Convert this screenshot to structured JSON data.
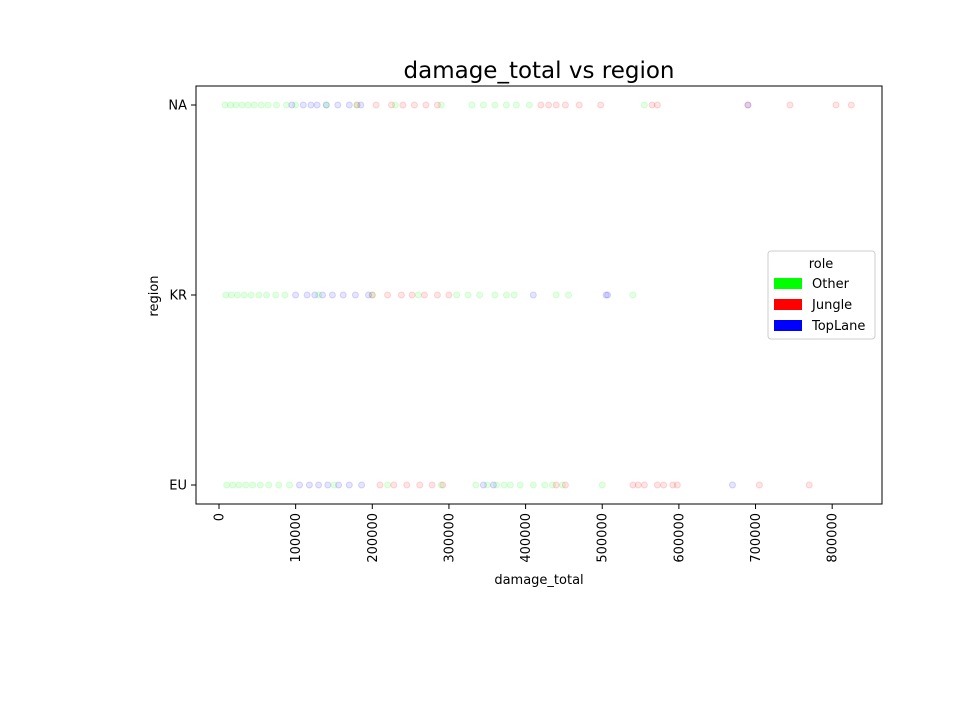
{
  "chart_data": {
    "type": "scatter",
    "title": "damage_total vs region",
    "xlabel": "damage_total",
    "ylabel": "region",
    "xlim": [
      -30000,
      865000
    ],
    "categories": [
      "EU",
      "KR",
      "NA"
    ],
    "xticks": [
      0,
      100000,
      200000,
      300000,
      400000,
      500000,
      600000,
      700000,
      800000
    ],
    "legend": {
      "title": "role",
      "placement": "center-right",
      "entries": [
        {
          "name": "Other",
          "color": "#00ff00"
        },
        {
          "name": "Jungle",
          "color": "#ff0000"
        },
        {
          "name": "TopLane",
          "color": "#0000ff"
        }
      ]
    },
    "grid": false,
    "marker_alpha": 0.1,
    "series": [
      {
        "name": "Other",
        "color": "#00ff00",
        "points": [
          {
            "region": "NA",
            "x": 8000
          },
          {
            "region": "NA",
            "x": 15000
          },
          {
            "region": "NA",
            "x": 22000
          },
          {
            "region": "NA",
            "x": 30000
          },
          {
            "region": "NA",
            "x": 38000
          },
          {
            "region": "NA",
            "x": 46000
          },
          {
            "region": "NA",
            "x": 55000
          },
          {
            "region": "NA",
            "x": 64000
          },
          {
            "region": "NA",
            "x": 75000
          },
          {
            "region": "NA",
            "x": 88000
          },
          {
            "region": "NA",
            "x": 100000
          },
          {
            "region": "NA",
            "x": 140000
          },
          {
            "region": "NA",
            "x": 180000
          },
          {
            "region": "NA",
            "x": 230000
          },
          {
            "region": "NA",
            "x": 290000
          },
          {
            "region": "NA",
            "x": 330000
          },
          {
            "region": "NA",
            "x": 345000
          },
          {
            "region": "NA",
            "x": 360000
          },
          {
            "region": "NA",
            "x": 375000
          },
          {
            "region": "NA",
            "x": 388000
          },
          {
            "region": "NA",
            "x": 405000
          },
          {
            "region": "NA",
            "x": 555000
          },
          {
            "region": "KR",
            "x": 9000
          },
          {
            "region": "KR",
            "x": 16000
          },
          {
            "region": "KR",
            "x": 24000
          },
          {
            "region": "KR",
            "x": 33000
          },
          {
            "region": "KR",
            "x": 42000
          },
          {
            "region": "KR",
            "x": 52000
          },
          {
            "region": "KR",
            "x": 62000
          },
          {
            "region": "KR",
            "x": 74000
          },
          {
            "region": "KR",
            "x": 86000
          },
          {
            "region": "KR",
            "x": 130000
          },
          {
            "region": "KR",
            "x": 200000
          },
          {
            "region": "KR",
            "x": 260000
          },
          {
            "region": "KR",
            "x": 310000
          },
          {
            "region": "KR",
            "x": 325000
          },
          {
            "region": "KR",
            "x": 340000
          },
          {
            "region": "KR",
            "x": 360000
          },
          {
            "region": "KR",
            "x": 375000
          },
          {
            "region": "KR",
            "x": 385000
          },
          {
            "region": "KR",
            "x": 440000
          },
          {
            "region": "KR",
            "x": 456000
          },
          {
            "region": "KR",
            "x": 540000
          },
          {
            "region": "EU",
            "x": 10000
          },
          {
            "region": "EU",
            "x": 18000
          },
          {
            "region": "EU",
            "x": 26000
          },
          {
            "region": "EU",
            "x": 35000
          },
          {
            "region": "EU",
            "x": 44000
          },
          {
            "region": "EU",
            "x": 54000
          },
          {
            "region": "EU",
            "x": 65000
          },
          {
            "region": "EU",
            "x": 78000
          },
          {
            "region": "EU",
            "x": 92000
          },
          {
            "region": "EU",
            "x": 150000
          },
          {
            "region": "EU",
            "x": 220000
          },
          {
            "region": "EU",
            "x": 290000
          },
          {
            "region": "EU",
            "x": 335000
          },
          {
            "region": "EU",
            "x": 350000
          },
          {
            "region": "EU",
            "x": 362000
          },
          {
            "region": "EU",
            "x": 372000
          },
          {
            "region": "EU",
            "x": 380000
          },
          {
            "region": "EU",
            "x": 393000
          },
          {
            "region": "EU",
            "x": 410000
          },
          {
            "region": "EU",
            "x": 425000
          },
          {
            "region": "EU",
            "x": 435000
          },
          {
            "region": "EU",
            "x": 448000
          },
          {
            "region": "EU",
            "x": 500000
          }
        ]
      },
      {
        "name": "Jungle",
        "color": "#ff0000",
        "points": [
          {
            "region": "NA",
            "x": 180000
          },
          {
            "region": "NA",
            "x": 205000
          },
          {
            "region": "NA",
            "x": 225000
          },
          {
            "region": "NA",
            "x": 240000
          },
          {
            "region": "NA",
            "x": 255000
          },
          {
            "region": "NA",
            "x": 270000
          },
          {
            "region": "NA",
            "x": 285000
          },
          {
            "region": "NA",
            "x": 420000
          },
          {
            "region": "NA",
            "x": 430000
          },
          {
            "region": "NA",
            "x": 440000
          },
          {
            "region": "NA",
            "x": 452000
          },
          {
            "region": "NA",
            "x": 470000
          },
          {
            "region": "NA",
            "x": 498000
          },
          {
            "region": "NA",
            "x": 565000
          },
          {
            "region": "NA",
            "x": 572000
          },
          {
            "region": "NA",
            "x": 690000
          },
          {
            "region": "NA",
            "x": 745000
          },
          {
            "region": "NA",
            "x": 805000
          },
          {
            "region": "NA",
            "x": 825000
          },
          {
            "region": "KR",
            "x": 200000
          },
          {
            "region": "KR",
            "x": 220000
          },
          {
            "region": "KR",
            "x": 238000
          },
          {
            "region": "KR",
            "x": 252000
          },
          {
            "region": "KR",
            "x": 268000
          },
          {
            "region": "KR",
            "x": 285000
          },
          {
            "region": "KR",
            "x": 300000
          },
          {
            "region": "EU",
            "x": 210000
          },
          {
            "region": "EU",
            "x": 228000
          },
          {
            "region": "EU",
            "x": 245000
          },
          {
            "region": "EU",
            "x": 262000
          },
          {
            "region": "EU",
            "x": 278000
          },
          {
            "region": "EU",
            "x": 292000
          },
          {
            "region": "EU",
            "x": 440000
          },
          {
            "region": "EU",
            "x": 452000
          },
          {
            "region": "EU",
            "x": 540000
          },
          {
            "region": "EU",
            "x": 547000
          },
          {
            "region": "EU",
            "x": 555000
          },
          {
            "region": "EU",
            "x": 572000
          },
          {
            "region": "EU",
            "x": 580000
          },
          {
            "region": "EU",
            "x": 592000
          },
          {
            "region": "EU",
            "x": 598000
          },
          {
            "region": "EU",
            "x": 705000
          },
          {
            "region": "EU",
            "x": 770000
          }
        ]
      },
      {
        "name": "TopLane",
        "color": "#0000ff",
        "points": [
          {
            "region": "NA",
            "x": 95000
          },
          {
            "region": "NA",
            "x": 110000
          },
          {
            "region": "NA",
            "x": 120000
          },
          {
            "region": "NA",
            "x": 128000
          },
          {
            "region": "NA",
            "x": 140000
          },
          {
            "region": "NA",
            "x": 155000
          },
          {
            "region": "NA",
            "x": 170000
          },
          {
            "region": "NA",
            "x": 185000
          },
          {
            "region": "NA",
            "x": 690000
          },
          {
            "region": "KR",
            "x": 100000
          },
          {
            "region": "KR",
            "x": 115000
          },
          {
            "region": "KR",
            "x": 125000
          },
          {
            "region": "KR",
            "x": 135000
          },
          {
            "region": "KR",
            "x": 148000
          },
          {
            "region": "KR",
            "x": 162000
          },
          {
            "region": "KR",
            "x": 178000
          },
          {
            "region": "KR",
            "x": 195000
          },
          {
            "region": "KR",
            "x": 410000
          },
          {
            "region": "KR",
            "x": 505000
          },
          {
            "region": "KR",
            "x": 507000
          },
          {
            "region": "EU",
            "x": 105000
          },
          {
            "region": "EU",
            "x": 118000
          },
          {
            "region": "EU",
            "x": 130000
          },
          {
            "region": "EU",
            "x": 142000
          },
          {
            "region": "EU",
            "x": 156000
          },
          {
            "region": "EU",
            "x": 170000
          },
          {
            "region": "EU",
            "x": 186000
          },
          {
            "region": "EU",
            "x": 345000
          },
          {
            "region": "EU",
            "x": 358000
          },
          {
            "region": "EU",
            "x": 670000
          }
        ]
      }
    ]
  }
}
